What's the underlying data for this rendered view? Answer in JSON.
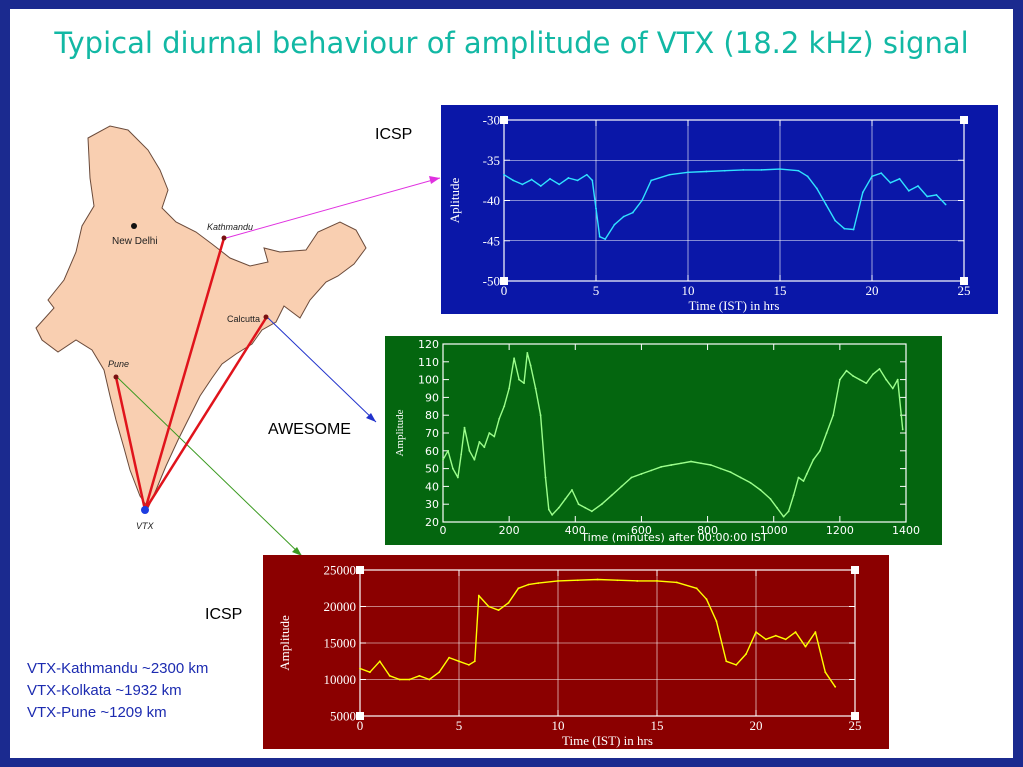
{
  "slide": {
    "title": "Typical diurnal behaviour of amplitude of VTX (18.2 kHz) signal",
    "frame_color": "#1b2a8f",
    "title_color": "#12b8a4"
  },
  "map": {
    "country_color": "#f9cfb1",
    "path_color": "#e0141c",
    "cities": {
      "new_delhi": "New Delhi",
      "kathmandu": "Kathmandu",
      "calcutta": "Calcutta",
      "pune": "Pune",
      "vtx": "VTX"
    }
  },
  "labels": {
    "top": "ICSP",
    "middle": "AWESOME",
    "bottom": "ICSP"
  },
  "distances": [
    "VTX-Kathmandu ~2300 km",
    "VTX-Kolkata ~1932 km",
    "VTX-Pune ~1209 km"
  ],
  "chart_data": [
    {
      "id": "kathmandu",
      "type": "line",
      "background": "#0a17a8",
      "line_color": "#30e2ff",
      "xlabel": "Time (IST) in hrs",
      "ylabel": "Aplitude",
      "xlim": [
        0,
        25
      ],
      "ylim": [
        -50,
        -30
      ],
      "xticks": [
        0,
        5,
        10,
        15,
        20,
        25
      ],
      "yticks": [
        -50,
        -45,
        -40,
        -35,
        -30
      ],
      "series": [
        {
          "x": [
            0,
            0.5,
            1,
            1.5,
            2,
            2.5,
            3,
            3.5,
            4,
            4.5,
            4.8,
            5,
            5.2,
            5.5,
            6,
            6.5,
            7,
            7.5,
            8,
            9,
            10,
            11,
            12,
            13,
            14,
            15,
            16,
            16.5,
            17,
            17.5,
            18,
            18.5,
            19,
            19.5,
            20,
            20.5,
            21,
            21.5,
            22,
            22.5,
            23,
            23.5,
            24
          ],
          "y": [
            -36.8,
            -37.5,
            -38,
            -37.4,
            -38.2,
            -37.3,
            -38,
            -37.2,
            -37.5,
            -36.8,
            -37.5,
            -41,
            -44.5,
            -44.8,
            -43,
            -42,
            -41.5,
            -40,
            -37.5,
            -36.8,
            -36.5,
            -36.4,
            -36.3,
            -36.2,
            -36.2,
            -36.1,
            -36.3,
            -37,
            -38.5,
            -40.5,
            -42.5,
            -43.5,
            -43.6,
            -39,
            -37,
            -36.6,
            -37.8,
            -37.3,
            -38.8,
            -38.2,
            -39.5,
            -39.3,
            -40.5
          ]
        }
      ]
    },
    {
      "id": "calcutta",
      "type": "line",
      "background": "#04660f",
      "line_color": "#9cff8c",
      "xlabel": "Time (minutes) after 00:00:00 IST",
      "ylabel": "Amplitude",
      "xlim": [
        0,
        1400
      ],
      "ylim": [
        20,
        120
      ],
      "xticks": [
        0,
        200,
        400,
        600,
        800,
        1000,
        1200,
        1400
      ],
      "yticks": [
        20,
        30,
        40,
        50,
        60,
        70,
        80,
        90,
        100,
        110,
        120
      ],
      "series": [
        {
          "x": [
            0,
            15,
            30,
            45,
            55,
            65,
            80,
            95,
            110,
            125,
            140,
            155,
            170,
            185,
            200,
            215,
            230,
            245,
            255,
            265,
            280,
            295,
            310,
            320,
            330,
            350,
            370,
            390,
            410,
            430,
            450,
            480,
            510,
            540,
            570,
            600,
            630,
            660,
            690,
            720,
            750,
            780,
            810,
            840,
            870,
            900,
            930,
            960,
            990,
            1010,
            1030,
            1045,
            1060,
            1075,
            1090,
            1100,
            1120,
            1140,
            1160,
            1180,
            1200,
            1220,
            1240,
            1260,
            1280,
            1300,
            1320,
            1340,
            1360,
            1375,
            1390
          ],
          "y": [
            55,
            60,
            50,
            45,
            58,
            73,
            60,
            55,
            65,
            62,
            70,
            68,
            78,
            85,
            95,
            112,
            100,
            98,
            115,
            108,
            95,
            80,
            45,
            27,
            24,
            28,
            33,
            38,
            30,
            28,
            26,
            30,
            35,
            40,
            45,
            47,
            49,
            51,
            52,
            53,
            54,
            53,
            52,
            50,
            48,
            45,
            42,
            38,
            33,
            28,
            23,
            26,
            35,
            45,
            43,
            47,
            55,
            60,
            70,
            80,
            100,
            105,
            102,
            100,
            98,
            103,
            106,
            100,
            95,
            100,
            72
          ]
        }
      ]
    },
    {
      "id": "pune",
      "type": "line",
      "background": "#8b0000",
      "line_color": "#ffff00",
      "xlabel": "Time (IST) in hrs",
      "ylabel": "Amplitude",
      "xlim": [
        0,
        25
      ],
      "ylim": [
        5000,
        25000
      ],
      "xticks": [
        0,
        5,
        10,
        15,
        20,
        25
      ],
      "yticks": [
        5000,
        10000,
        15000,
        20000,
        25000
      ],
      "series": [
        {
          "x": [
            0,
            0.5,
            1,
            1.5,
            2,
            2.5,
            3,
            3.5,
            4,
            4.5,
            5,
            5.5,
            5.8,
            6,
            6.5,
            7,
            7.5,
            8,
            8.5,
            9,
            10,
            11,
            12,
            13,
            14,
            15,
            16,
            17,
            17.5,
            18,
            18.5,
            19,
            19.5,
            20,
            20.5,
            21,
            21.5,
            22,
            22.5,
            23,
            23.5,
            24
          ],
          "y": [
            11500,
            11000,
            12500,
            10500,
            10000,
            10000,
            10500,
            10000,
            11000,
            13000,
            12500,
            12000,
            12500,
            21500,
            20000,
            19500,
            20500,
            22500,
            23000,
            23200,
            23500,
            23600,
            23700,
            23600,
            23500,
            23500,
            23300,
            22500,
            21000,
            18000,
            12500,
            12000,
            13500,
            16500,
            15500,
            16000,
            15500,
            16500,
            14500,
            16500,
            11000,
            9000
          ]
        }
      ]
    }
  ]
}
